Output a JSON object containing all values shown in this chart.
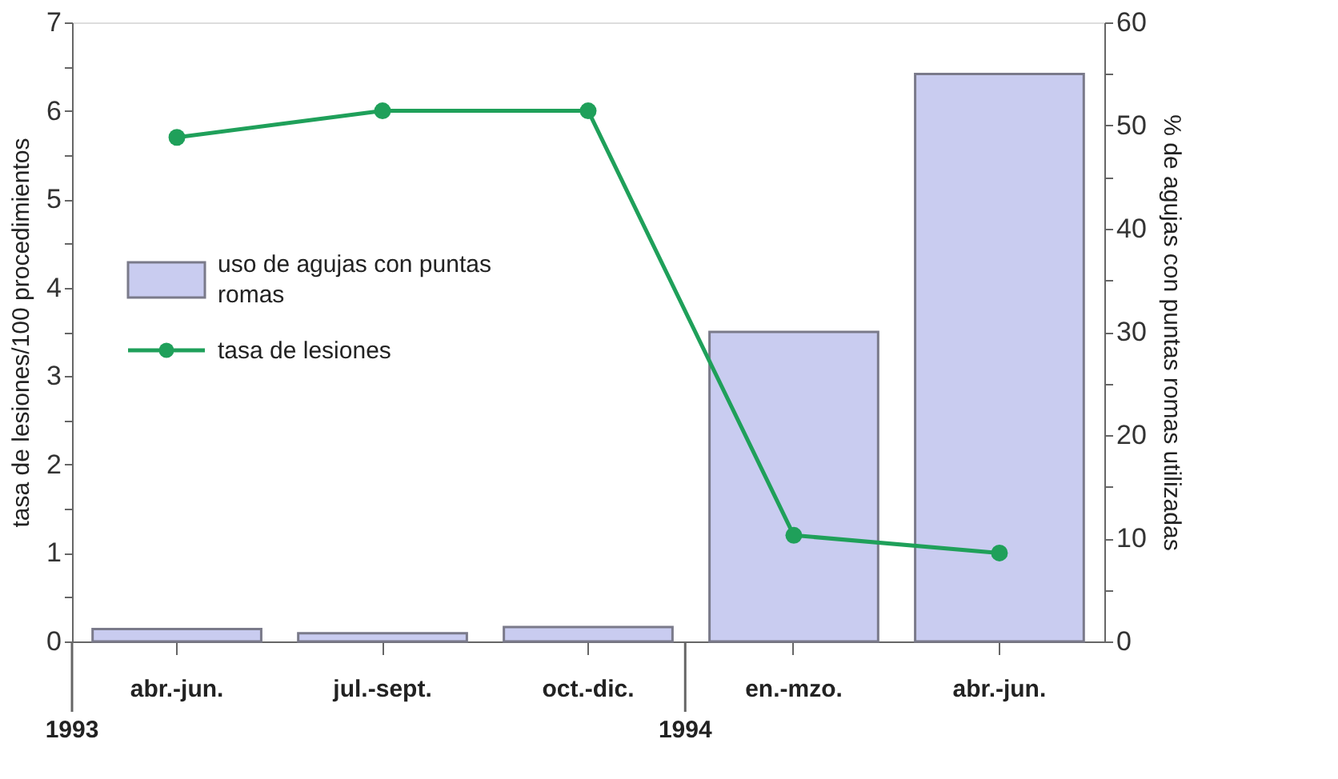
{
  "chart_data": {
    "type": "bar",
    "categories": [
      "abr.-jun.",
      "jul.-sept.",
      "oct.-dic.",
      "en.-mzo.",
      "abr.-jun."
    ],
    "series": [
      {
        "name": "uso de agujas con puntas romas",
        "axis": "y2",
        "color": "#c9ccf0",
        "values": [
          1.2,
          0.8,
          1.4,
          30,
          55
        ]
      },
      {
        "name": "tasa de lesiones",
        "type": "line",
        "color": "#1fa05a",
        "marker": "circle",
        "values": [
          5.7,
          6.0,
          6.0,
          1.2,
          1.0
        ]
      }
    ],
    "ylabel": "tasa de lesiones/100 procedimientos",
    "y2label": "% de agujas con puntas romas utilizadas",
    "ylim": [
      0,
      7
    ],
    "yticks": [
      0,
      {
        "value": 0.5,
        "label": null
      },
      1,
      {
        "value": 1.5,
        "label": null
      },
      2,
      {
        "value": 2.5,
        "label": null
      },
      3,
      {
        "value": 3.5,
        "label": null
      },
      4,
      {
        "value": 4.5,
        "label": null
      },
      5,
      {
        "value": 5.5,
        "label": null
      },
      6,
      {
        "value": 6.5,
        "label": null
      },
      7
    ],
    "y2lim": [
      0,
      60
    ],
    "y2ticks": [
      0,
      {
        "value": 5,
        "label": null
      },
      10,
      {
        "value": 15,
        "label": null
      },
      20,
      {
        "value": 25,
        "label": null
      },
      30,
      {
        "value": 35,
        "label": null
      },
      40,
      {
        "value": 45,
        "label": null
      },
      50,
      {
        "value": 55,
        "label": null
      },
      60
    ],
    "annotations": [
      "1993",
      "1994"
    ],
    "legend": "left",
    "grid": false
  }
}
